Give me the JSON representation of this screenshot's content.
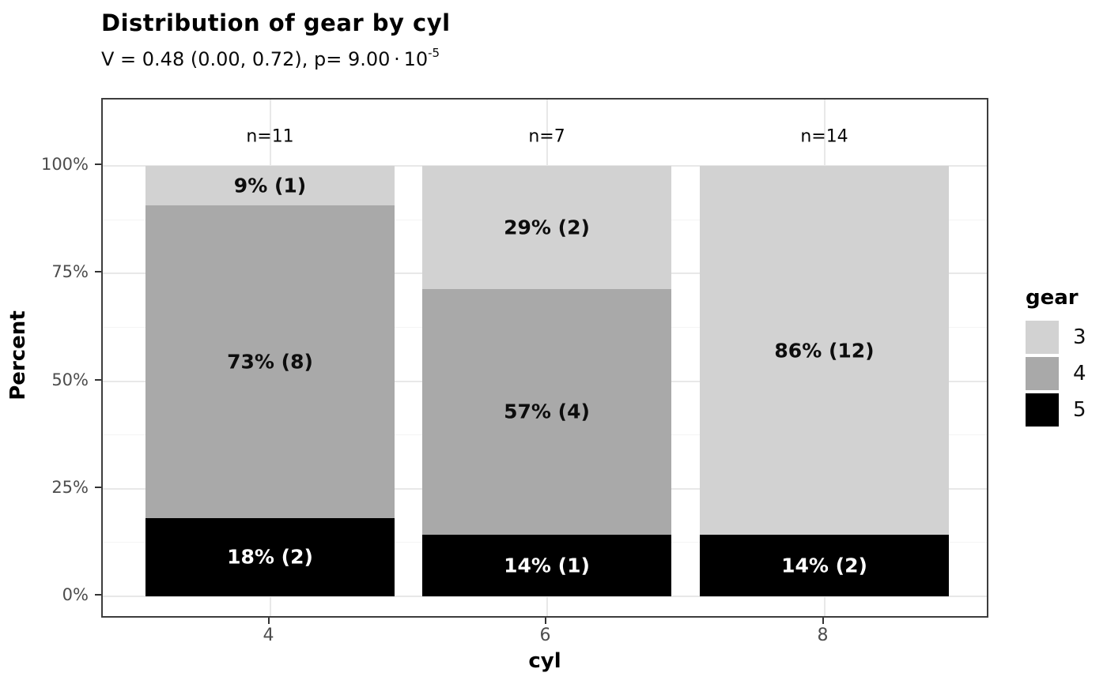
{
  "chart_data": {
    "type": "bar",
    "variant": "stacked-percent",
    "title": "Distribution of gear by cyl",
    "subtitle": "V = 0.48 (0.00, 0.72), p= 9.00·10^-5",
    "subtitle_base": "V = 0.48 (0.00, 0.72), p= 9.00 · 10",
    "subtitle_exponent": "-5",
    "xlabel": "cyl",
    "ylabel": "Percent",
    "legend_title": "gear",
    "legend_position": "right",
    "categories": [
      "4",
      "6",
      "8"
    ],
    "sample_sizes": [
      11,
      7,
      14
    ],
    "n_labels": [
      "n=11",
      "n=7",
      "n=14"
    ],
    "ylim": [
      0,
      100
    ],
    "y_tick_values": [
      0,
      25,
      50,
      75,
      100
    ],
    "y_tick_labels": [
      "0%",
      "25%",
      "50%",
      "75%",
      "100%"
    ],
    "y_minor_tick_values": [
      12.5,
      37.5,
      62.5,
      87.5
    ],
    "grid": true,
    "series": [
      {
        "name": "3",
        "color": "#d2d2d2",
        "label_color": "#0d0d0d",
        "counts": [
          1,
          2,
          12
        ],
        "percents": [
          9.0909,
          28.5714,
          85.7143
        ],
        "labels": [
          "9% (1)",
          "29% (2)",
          "86% (12)"
        ]
      },
      {
        "name": "4",
        "color": "#a9a9a9",
        "label_color": "#0d0d0d",
        "counts": [
          8,
          4,
          0
        ],
        "percents": [
          72.7273,
          57.1429,
          0
        ],
        "labels": [
          "73% (8)",
          "57% (4)",
          ""
        ]
      },
      {
        "name": "5",
        "color": "#000000",
        "label_color": "#ffffff",
        "counts": [
          2,
          1,
          2
        ],
        "percents": [
          18.1818,
          14.2857,
          14.2857
        ],
        "labels": [
          "18% (2)",
          "14% (1)",
          "14% (2)"
        ]
      }
    ]
  },
  "colors": {
    "background": "#ffffff",
    "panel_border": "#3d3d3d",
    "grid_major": "#e8e8e8",
    "grid_minor": "#f4f4f4",
    "axis_text": "#4d4d4d",
    "tick_mark": "#333333",
    "text": "#000000"
  }
}
